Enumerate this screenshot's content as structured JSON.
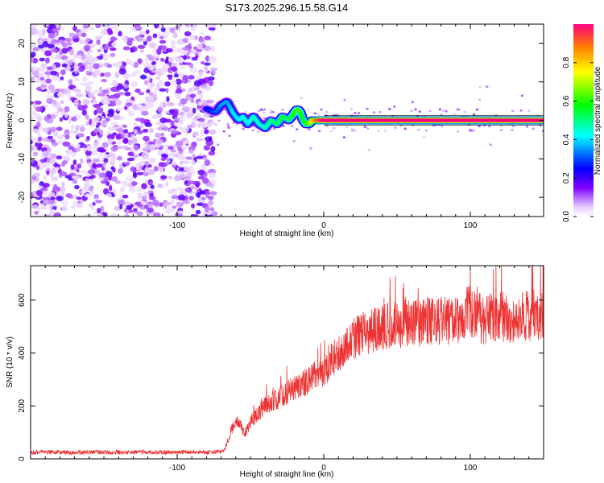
{
  "title": "S173.2025.296.15.58.G14",
  "chart_data": [
    {
      "type": "heatmap",
      "name": "spectrogram",
      "xlabel": "Height of straight line (km)",
      "ylabel": "Frequency (Hz)",
      "xlim": [
        -200,
        150
      ],
      "ylim": [
        -25,
        25
      ],
      "x_ticks": [
        -100,
        0,
        100
      ],
      "x_tick_labels": [
        "-100",
        "0",
        "100"
      ],
      "y_ticks": [
        -20,
        -10,
        0,
        10,
        20
      ],
      "y_tick_labels": [
        "-20",
        "-10",
        "0",
        "10",
        "20"
      ],
      "noise_region_x": [
        -200,
        -75
      ],
      "trace": {
        "description": "peak frequency track",
        "x": [
          -80,
          -74,
          -70,
          -66,
          -62,
          -58,
          -55,
          -52,
          -48,
          -44,
          -40,
          -36,
          -32,
          -28,
          -24,
          -20,
          -18,
          -16,
          -14,
          -12,
          -10,
          -8,
          -5,
          0,
          50,
          100,
          150
        ],
        "y": [
          3,
          2,
          4,
          5,
          2,
          0,
          1,
          -1,
          1,
          -1,
          -2,
          0,
          -1,
          1,
          0,
          2,
          3,
          2,
          0,
          -1,
          -1,
          0,
          0,
          0,
          0,
          0,
          0
        ],
        "amplitude": [
          0.25,
          0.3,
          0.35,
          0.35,
          0.4,
          0.4,
          0.45,
          0.4,
          0.45,
          0.45,
          0.45,
          0.5,
          0.5,
          0.55,
          0.5,
          0.6,
          0.65,
          0.6,
          0.55,
          0.6,
          0.65,
          0.8,
          0.9,
          1.0,
          1.0,
          1.0,
          1.0
        ]
      },
      "colorbar": {
        "label": "Normalized spectral amplitude",
        "range": [
          0,
          1
        ],
        "ticks": [
          0,
          0.2,
          0.4,
          0.6,
          0.8
        ],
        "tick_labels": [
          "0.0",
          "0.2",
          "0.4",
          "0.6",
          "0.8"
        ]
      }
    },
    {
      "type": "line",
      "name": "snr",
      "xlabel": "Height of straight line (km)",
      "ylabel": "SNR (10 * v/v)",
      "xlim": [
        -200,
        150
      ],
      "ylim": [
        0,
        730
      ],
      "x_ticks": [
        -100,
        0,
        100
      ],
      "x_tick_labels": [
        "-100",
        "0",
        "100"
      ],
      "y_ticks": [
        0,
        200,
        400,
        600
      ],
      "y_tick_labels": [
        "0",
        "200",
        "400",
        "600"
      ],
      "color": "#ee3333",
      "series": [
        {
          "name": "SNR",
          "x": [
            -200,
            -150,
            -100,
            -75,
            -68,
            -62,
            -58,
            -54,
            -50,
            -45,
            -40,
            -35,
            -30,
            -25,
            -20,
            -15,
            -10,
            -5,
            0,
            5,
            10,
            15,
            20,
            25,
            30,
            40,
            50,
            60,
            70,
            80,
            90,
            95,
            100,
            110,
            120,
            130,
            140,
            150
          ],
          "y": [
            25,
            25,
            25,
            25,
            30,
            120,
            140,
            90,
            140,
            170,
            200,
            220,
            230,
            250,
            270,
            280,
            300,
            320,
            330,
            370,
            400,
            430,
            450,
            470,
            480,
            500,
            510,
            510,
            520,
            520,
            530,
            540,
            560,
            520,
            540,
            530,
            540,
            550
          ]
        }
      ]
    }
  ]
}
